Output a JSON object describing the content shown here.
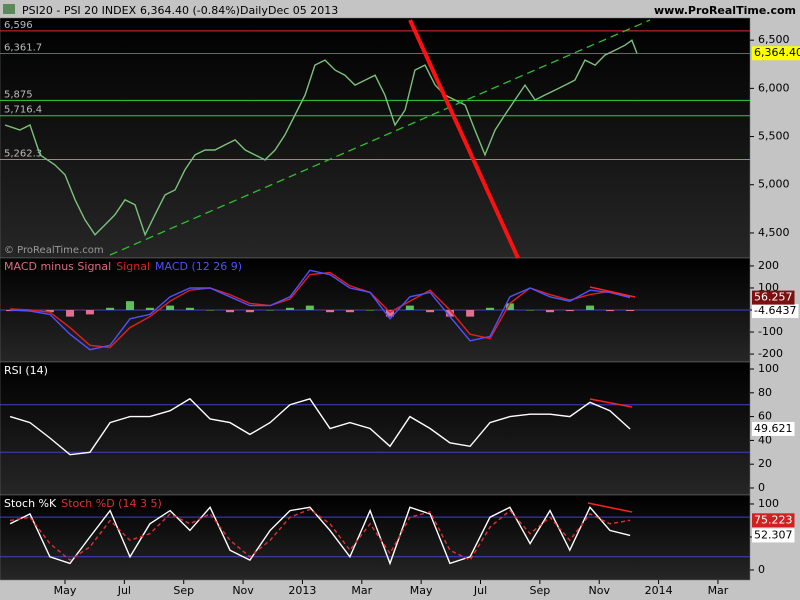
{
  "header": {
    "symbol": "PSI20 - PSI 20 INDEX",
    "quote": "6,364.40 (-0.84%)",
    "period": "Daily",
    "date": "Dec 05 2013",
    "site": "www.ProRealTime.com",
    "watermark": "© ProRealTime.com"
  },
  "chart_data": [
    {
      "type": "line",
      "color": "#7cc07c",
      "end_label": true,
      "label_bg": "#ffff00",
      "label_fg": "#000000",
      "xlim": [
        -1.19,
        24.08
      ],
      "ylim": [
        4240,
        6730
      ],
      "yticks": [
        {
          "value": 6500,
          "label": "6,500"
        },
        {
          "value": 6000,
          "label": "6,000"
        },
        {
          "value": 5500,
          "label": "5,500"
        },
        {
          "value": 5000,
          "label": "5,000"
        },
        {
          "value": 4500,
          "label": "4,500"
        }
      ],
      "levels": [
        {
          "value": 6596,
          "label": "6,596",
          "color": "#e03030"
        },
        {
          "value": 6361.7,
          "label": "6,361.7",
          "color": "#e03030"
        },
        {
          "value": 5875,
          "label": "5,875",
          "color": "#30d030"
        },
        {
          "value": 5716.4,
          "label": "5,716.4",
          "color": "#30d030"
        },
        {
          "value": 5262.3,
          "label": "5,262.3",
          "color": "#30d030"
        }
      ],
      "x": [
        -1.02,
        -0.52,
        -0.18,
        0.16,
        0.66,
        1,
        1.34,
        1.67,
        2.01,
        2.35,
        2.68,
        3.02,
        3.36,
        3.7,
        4.03,
        4.37,
        4.71,
        5.04,
        5.38,
        5.72,
        6.05,
        6.39,
        6.73,
        7.07,
        7.4,
        7.74,
        8.08,
        8.41,
        8.75,
        9.09,
        9.42,
        9.76,
        10.1,
        10.43,
        10.77,
        11.11,
        11.45,
        11.78,
        12.12,
        12.46,
        12.79,
        13.13,
        13.47,
        13.8,
        14.14,
        14.48,
        14.81,
        15.15,
        15.49,
        15.82,
        16.16,
        16.5,
        16.84,
        17.17,
        17.51,
        17.85,
        18.18,
        18.52,
        18.86,
        19.19,
        19.53,
        19.87,
        20.1,
        20.27
      ],
      "values": [
        5620,
        5568,
        5620,
        5310,
        5206,
        5103,
        4844,
        4637,
        4481,
        4585,
        4688,
        4844,
        4792,
        4481,
        4688,
        4895,
        4947,
        5154,
        5310,
        5361,
        5361,
        5413,
        5465,
        5361,
        5310,
        5258,
        5361,
        5517,
        5724,
        5931,
        6241,
        6293,
        6189,
        6137,
        6034,
        6086,
        6137,
        5931,
        5620,
        5775,
        6189,
        6241,
        6034,
        5931,
        5879,
        5827,
        5568,
        5310,
        5568,
        5724,
        5879,
        6034,
        5879,
        5931,
        5982,
        6034,
        6086,
        6293,
        6241,
        6345,
        6396,
        6448,
        6500,
        6364.4
      ],
      "value_labels": [
        null,
        null,
        null,
        null,
        null,
        null,
        null,
        null,
        null,
        null,
        null,
        null,
        null,
        null,
        null,
        null,
        null,
        null,
        null,
        null,
        null,
        null,
        null,
        null,
        null,
        null,
        null,
        null,
        null,
        null,
        null,
        null,
        null,
        null,
        null,
        null,
        null,
        null,
        null,
        null,
        null,
        null,
        null,
        null,
        null,
        null,
        null,
        null,
        null,
        null,
        null,
        null,
        null,
        null,
        null,
        null,
        null,
        null,
        null,
        null,
        null,
        null,
        null,
        "6,364.40"
      ]
    },
    {
      "type": "line",
      "xlim": [
        -1.19,
        24.08
      ],
      "ylim": [
        -236,
        236
      ],
      "yticks": [
        200,
        100,
        0,
        -100,
        -200
      ],
      "levels": [
        {
          "value": 0,
          "color": "#4040d0"
        }
      ],
      "x": [
        -0.85,
        -0.18,
        0.49,
        1.17,
        1.84,
        2.52,
        3.19,
        3.86,
        4.54,
        5.21,
        5.89,
        6.56,
        7.23,
        7.91,
        8.58,
        9.25,
        9.93,
        10.6,
        11.28,
        11.95,
        12.62,
        13.3,
        13.97,
        14.65,
        15.32,
        15.99,
        16.67,
        17.34,
        18.01,
        18.69,
        19.36,
        20.04
      ],
      "series": [
        {
          "name": "MACD minus Signal",
          "kind": "bar",
          "color": "#e07090",
          "up_color": "#5cc05c",
          "legend_color": "#e06a80",
          "end_label": true,
          "label_bg": "#ffffff",
          "label_fg": "#000000",
          "values": [
            -5,
            -5,
            -10,
            -30,
            -20,
            10,
            40,
            10,
            20,
            10,
            0,
            -10,
            -10,
            0,
            10,
            20,
            -10,
            -10,
            0,
            -30,
            20,
            -10,
            -30,
            -30,
            10,
            30,
            0,
            -10,
            -5,
            20,
            -5,
            -4.6437
          ]
        },
        {
          "name": "Signal",
          "color": "#e02020",
          "values": [
            5,
            0,
            -10,
            -80,
            -160,
            -170,
            -80,
            -30,
            40,
            90,
            100,
            70,
            30,
            20,
            50,
            160,
            170,
            110,
            80,
            -10,
            40,
            90,
            0,
            -110,
            -130,
            30,
            100,
            70,
            45,
            70,
            85,
            60.9007
          ]
        },
        {
          "name": "MACD (12 26 9)",
          "color": "#5050ff",
          "end_label": true,
          "label_bg": "#7a1010",
          "label_fg": "#ffffff",
          "values": [
            0,
            -5,
            -20,
            -110,
            -180,
            -160,
            -40,
            -20,
            60,
            100,
            100,
            60,
            20,
            20,
            60,
            180,
            160,
            100,
            80,
            -40,
            60,
            80,
            -30,
            -140,
            -120,
            60,
            100,
            60,
            40,
            90,
            80,
            56.257
          ]
        }
      ]
    },
    {
      "type": "line",
      "xlim": [
        -1.19,
        24.08
      ],
      "ylim": [
        -5.9,
        105.9
      ],
      "yticks": [
        100,
        80,
        60,
        40,
        20,
        0
      ],
      "levels": [
        {
          "value": 70,
          "color": "#4040d0"
        },
        {
          "value": 30,
          "color": "#4040d0"
        }
      ],
      "x": [
        -0.85,
        -0.18,
        0.49,
        1.17,
        1.84,
        2.52,
        3.19,
        3.86,
        4.54,
        5.21,
        5.89,
        6.56,
        7.23,
        7.91,
        8.58,
        9.25,
        9.93,
        10.6,
        11.28,
        11.95,
        12.62,
        13.3,
        13.97,
        14.65,
        15.32,
        15.99,
        16.67,
        17.34,
        18.01,
        18.69,
        19.36,
        20.04
      ],
      "series": [
        {
          "name": "RSI (14)",
          "color": "#ffffff",
          "end_label": true,
          "label_bg": "#ffffff",
          "label_fg": "#000000",
          "values": [
            60,
            55,
            42,
            28,
            30,
            55,
            60,
            60,
            65,
            75,
            58,
            55,
            45,
            55,
            70,
            75,
            50,
            55,
            50,
            35,
            60,
            50,
            38,
            35,
            55,
            60,
            62,
            62,
            60,
            72,
            65,
            49.621
          ]
        }
      ]
    },
    {
      "type": "line",
      "xlim": [
        -1.19,
        24.08
      ],
      "ylim": [
        -15.2,
        113.6
      ],
      "yticks": [
        100,
        50,
        0
      ],
      "levels": [
        {
          "value": 80,
          "color": "#4040d0"
        },
        {
          "value": 20,
          "color": "#4040d0"
        }
      ],
      "xticks": [
        {
          "value": 1,
          "label": "May"
        },
        {
          "value": 3,
          "label": "Jul"
        },
        {
          "value": 5,
          "label": "Sep"
        },
        {
          "value": 7,
          "label": "Nov"
        },
        {
          "value": 9,
          "label": "2013"
        },
        {
          "value": 11,
          "label": "Mar"
        },
        {
          "value": 13,
          "label": "May"
        },
        {
          "value": 15,
          "label": "Jul"
        },
        {
          "value": 17,
          "label": "Sep"
        },
        {
          "value": 19,
          "label": "Nov"
        },
        {
          "value": 21,
          "label": "2014"
        },
        {
          "value": 23,
          "label": "Mar"
        }
      ],
      "x": [
        -0.85,
        -0.18,
        0.49,
        1.17,
        1.84,
        2.52,
        3.19,
        3.86,
        4.54,
        5.21,
        5.89,
        6.56,
        7.23,
        7.91,
        8.58,
        9.25,
        9.93,
        10.6,
        11.28,
        11.95,
        12.62,
        13.3,
        13.97,
        14.65,
        15.32,
        15.99,
        16.67,
        17.34,
        18.01,
        18.69,
        19.36,
        20.04
      ],
      "series": [
        {
          "name": "Stoch %K",
          "color": "#ffffff",
          "end_label": true,
          "label_bg": "#ffffff",
          "label_fg": "#000000",
          "values": [
            70,
            85,
            20,
            10,
            50,
            90,
            20,
            70,
            90,
            60,
            95,
            30,
            15,
            60,
            90,
            95,
            60,
            20,
            90,
            10,
            95,
            85,
            10,
            20,
            80,
            95,
            40,
            90,
            30,
            95,
            60,
            52.307
          ]
        },
        {
          "name": "Stoch %D (14 3 5)",
          "color": "#e03030",
          "dashed": true,
          "end_label": true,
          "label_bg": "#d02020",
          "label_fg": "#ffffff",
          "values": [
            75,
            80,
            40,
            15,
            35,
            75,
            45,
            55,
            85,
            70,
            85,
            45,
            20,
            45,
            80,
            92,
            70,
            30,
            70,
            25,
            80,
            88,
            30,
            15,
            65,
            90,
            55,
            80,
            45,
            85,
            70,
            75.223
          ]
        }
      ]
    }
  ]
}
